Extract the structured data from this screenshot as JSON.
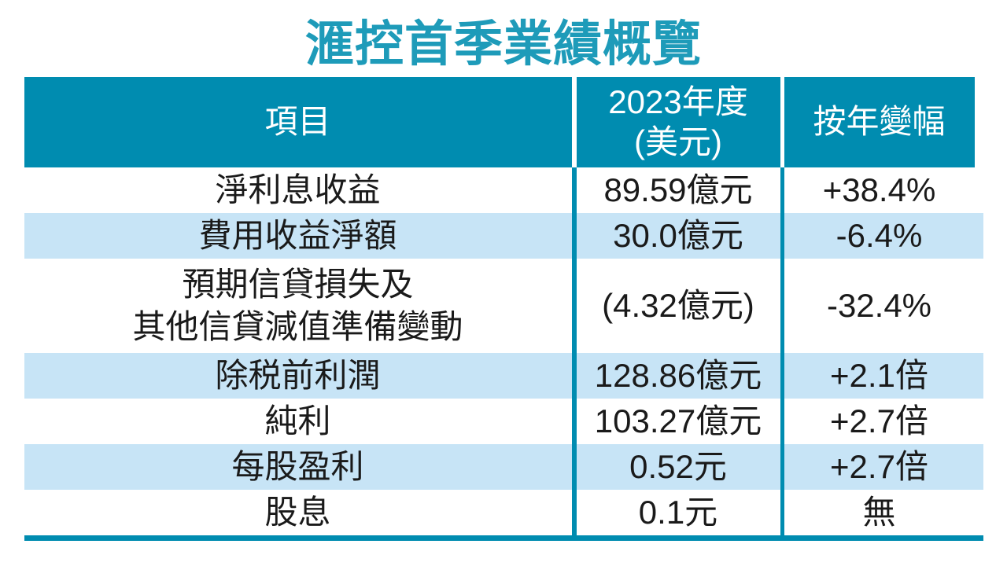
{
  "title": "滙控首季業績概覽",
  "colors": {
    "teal": "#008CB0",
    "title_teal": "#1E9BB9",
    "alt_row_blue": "#C7E4F6",
    "header_text": "#FFFFFF",
    "body_text": "#1A1A1A"
  },
  "table": {
    "headers": {
      "item": "項目",
      "value": "2023年度\n(美元)",
      "change": "按年變幅"
    },
    "rows": [
      {
        "item": "淨利息收益",
        "value": "89.59億元",
        "change": "+38.4%"
      },
      {
        "item": "費用收益淨額",
        "value": "30.0億元",
        "change": "-6.4%"
      },
      {
        "item": "預期信貸損失及\n其他信貸減值準備變動",
        "value": "(4.32億元)",
        "change": "-32.4%"
      },
      {
        "item": "除税前利潤",
        "value": "128.86億元",
        "change": "+2.1倍"
      },
      {
        "item": "純利",
        "value": "103.27億元",
        "change": "+2.7倍"
      },
      {
        "item": "每股盈利",
        "value": "0.52元",
        "change": "+2.7倍"
      },
      {
        "item": "股息",
        "value": "0.1元",
        "change": "無"
      }
    ]
  },
  "chart_data": {
    "type": "table",
    "title": "滙控首季業績概覽",
    "columns": [
      "項目",
      "2023年度(美元)",
      "按年變幅"
    ],
    "rows": [
      [
        "淨利息收益",
        "89.59億元",
        "+38.4%"
      ],
      [
        "費用收益淨額",
        "30.0億元",
        "-6.4%"
      ],
      [
        "預期信貸損失及其他信貸減值準備變動",
        "(4.32億元)",
        "-32.4%"
      ],
      [
        "除税前利潤",
        "128.86億元",
        "+2.1倍"
      ],
      [
        "純利",
        "103.27億元",
        "+2.7倍"
      ],
      [
        "每股盈利",
        "0.52元",
        "+2.7倍"
      ],
      [
        "股息",
        "0.1元",
        "無"
      ]
    ]
  }
}
